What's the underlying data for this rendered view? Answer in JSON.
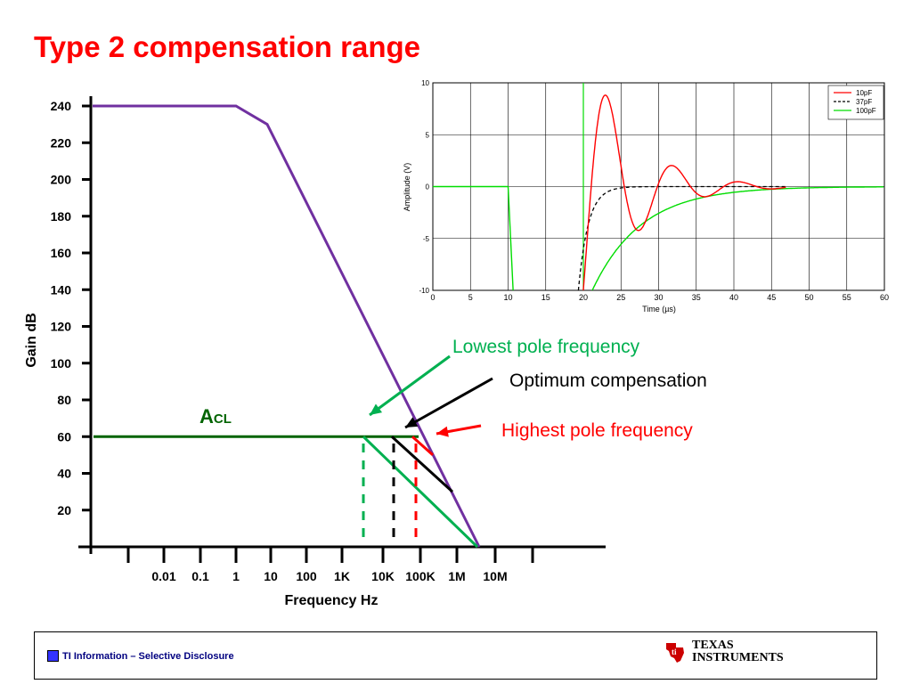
{
  "slide": {
    "title": "Type 2 compensation range"
  },
  "footer": {
    "disclosure": "TI Information – Selective Disclosure",
    "logo_line1": "Texas",
    "logo_line2": "Instruments",
    "logo_icon": "ti-state-logo-icon"
  },
  "chart_data": [
    {
      "type": "line",
      "title": "",
      "xlabel": "Frequency Hz",
      "ylabel": "Gain dB",
      "x_ticks": [
        "0.01",
        "0.1",
        "1",
        "10",
        "100",
        "1K",
        "10K",
        "100K",
        "1M",
        "10M"
      ],
      "y_ticks": [
        20,
        40,
        60,
        80,
        100,
        120,
        140,
        160,
        180,
        200,
        220,
        240
      ],
      "ylim": [
        0,
        240
      ],
      "grid": false,
      "colors": {
        "open_loop": "#7030a0",
        "closed_loop": "#006400",
        "lowest": "#00b050",
        "optimum": "#000000",
        "highest": "#ff0000",
        "annotation_green": "#00b050",
        "annotation_red": "#ff0000"
      },
      "series": [
        {
          "x": [
            "0.01",
            "1",
            "3",
            "1M"
          ],
          "y": [
            240,
            240,
            230,
            0
          ]
        },
        {
          "x": [
            "0.01",
            "100K"
          ],
          "y": [
            60,
            60
          ]
        }
      ],
      "labels": {
        "acl_main": "A",
        "acl_sub": "CL",
        "lowest": "Lowest pole frequency",
        "optimum": "Optimum compensation",
        "highest": "Highest pole frequency"
      }
    },
    {
      "type": "line",
      "title": "",
      "xlabel": "Time (µs)",
      "ylabel": "Amplitude (V)",
      "xlim": [
        0,
        60
      ],
      "ylim": [
        -10,
        10
      ],
      "x_ticks": [
        0,
        5,
        10,
        15,
        20,
        25,
        30,
        35,
        40,
        45,
        50,
        55,
        60
      ],
      "y_ticks": [
        10,
        5,
        0,
        -5,
        -10
      ],
      "grid": true,
      "legend_position": "top-right",
      "series": [
        {
          "name": "10pF",
          "color": "#ff0000",
          "dash": "solid"
        },
        {
          "name": "37pF",
          "color": "#000000",
          "dash": "dashed"
        },
        {
          "name": "100pF",
          "color": "#00dd00",
          "dash": "solid"
        }
      ]
    }
  ]
}
